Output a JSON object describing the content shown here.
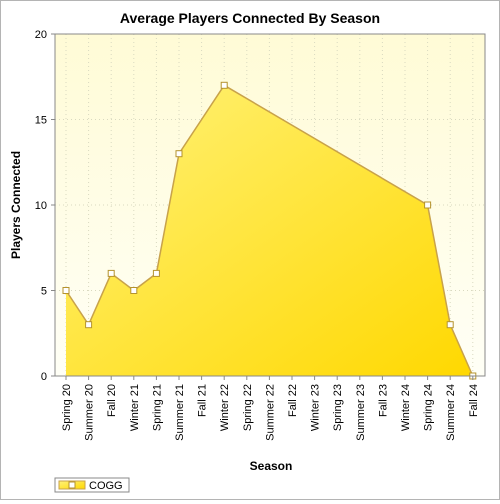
{
  "chart_data": {
    "type": "area",
    "title": "Average Players Connected By Season",
    "xlabel": "Season",
    "ylabel": "Players Connected",
    "ylim": [
      0,
      20
    ],
    "yticks": [
      0,
      5,
      10,
      15,
      20
    ],
    "categories": [
      "Spring 20",
      "Summer 20",
      "Fall 20",
      "Winter 21",
      "Spring 21",
      "Summer 21",
      "Fall 21",
      "Winter 22",
      "Spring 22",
      "Summer 22",
      "Fall 22",
      "Winter 23",
      "Spring 23",
      "Summer 23",
      "Fall 23",
      "Winter 24",
      "Spring 24",
      "Summer 24",
      "Fall 24"
    ],
    "series": [
      {
        "name": "COGG",
        "points": [
          {
            "x": "Spring 20",
            "y": 5
          },
          {
            "x": "Summer 20",
            "y": 3
          },
          {
            "x": "Fall 20",
            "y": 6
          },
          {
            "x": "Winter 21",
            "y": 5
          },
          {
            "x": "Spring 21",
            "y": 6
          },
          {
            "x": "Summer 21",
            "y": 13
          },
          {
            "x": "Winter 22",
            "y": 17
          },
          {
            "x": "Spring 24",
            "y": 10
          },
          {
            "x": "Summer 24",
            "y": 3
          },
          {
            "x": "Fall 24",
            "y": 0
          }
        ]
      }
    ],
    "grid": true,
    "legend_position": "bottom-left",
    "colors": {
      "plot_background": "#fffde6",
      "area_fill_light": "#fff27a",
      "area_fill_dark": "#ffd800",
      "line": "#c8a24a",
      "marker_fill": "#ffffff",
      "marker_stroke": "#b5932e",
      "grid": "#d9d9c0"
    }
  }
}
